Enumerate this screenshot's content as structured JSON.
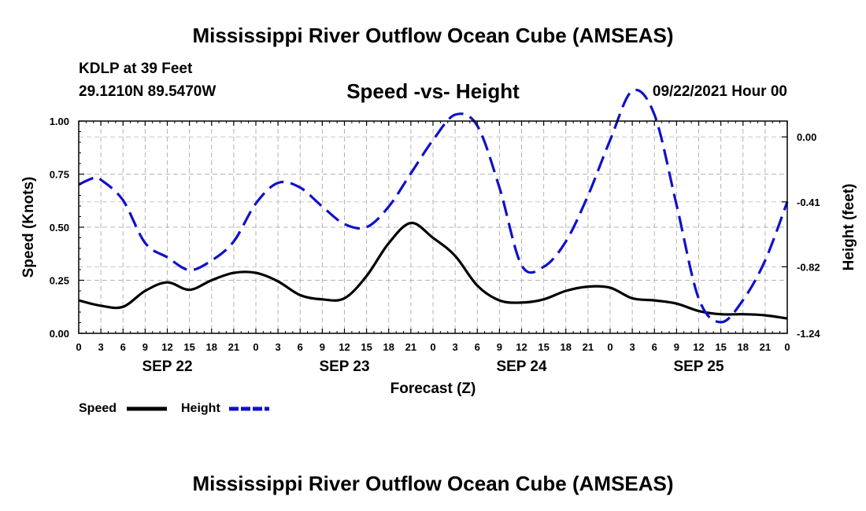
{
  "header": {
    "title": "Mississippi River Outflow Ocean Cube (AMSEAS)",
    "station": "KDLP at 39 Feet",
    "coords": "29.1210N  89.5470W",
    "subtitle": "Speed -vs- Height",
    "datetime": "09/22/2021 Hour 00"
  },
  "footer": {
    "title": "Mississippi River Outflow Ocean Cube (AMSEAS)"
  },
  "chart_data": {
    "type": "line",
    "title": "Speed -vs- Height",
    "xlabel": "Forecast (Z)",
    "ylabel": "Speed (Knots)",
    "y2label": "Height (feet)",
    "xlim": [
      0,
      96
    ],
    "ylim": [
      0,
      1.0
    ],
    "y2lim": [
      -1.24,
      0.1
    ],
    "grid": true,
    "x_tick_labels": [
      "0",
      "3",
      "6",
      "9",
      "12",
      "15",
      "18",
      "21",
      "0",
      "3",
      "6",
      "9",
      "12",
      "15",
      "18",
      "21",
      "0",
      "3",
      "6",
      "9",
      "12",
      "15",
      "18",
      "21",
      "0",
      "3",
      "6",
      "9",
      "12",
      "15",
      "18",
      "21",
      "0"
    ],
    "day_labels": [
      {
        "label": "SEP 22",
        "x": 12
      },
      {
        "label": "SEP 23",
        "x": 36
      },
      {
        "label": "SEP 24",
        "x": 60
      },
      {
        "label": "SEP 25",
        "x": 84
      }
    ],
    "y_ticks": [
      "0.00",
      "0.25",
      "0.50",
      "0.75",
      "1.00"
    ],
    "y_tick_values": [
      0,
      0.25,
      0.5,
      0.75,
      1.0
    ],
    "y2_ticks": [
      "0.00",
      "-0.41",
      "-0.82",
      "-1.24"
    ],
    "y2_tick_values": [
      0,
      -0.41,
      -0.82,
      -1.24
    ],
    "series": [
      {
        "name": "Speed",
        "axis": "left",
        "color": "#000000",
        "dash": "solid",
        "x": [
          0,
          3,
          6,
          9,
          12,
          15,
          18,
          21,
          24,
          27,
          30,
          33,
          36,
          39,
          42,
          45,
          48,
          51,
          54,
          57,
          60,
          63,
          66,
          69,
          72,
          75,
          78,
          81,
          84,
          87,
          90,
          93,
          96
        ],
        "values": [
          0.155,
          0.13,
          0.125,
          0.2,
          0.24,
          0.205,
          0.25,
          0.285,
          0.285,
          0.245,
          0.18,
          0.16,
          0.165,
          0.27,
          0.425,
          0.52,
          0.45,
          0.365,
          0.225,
          0.155,
          0.145,
          0.16,
          0.2,
          0.22,
          0.215,
          0.165,
          0.155,
          0.14,
          0.105,
          0.09,
          0.09,
          0.085,
          0.07
        ]
      },
      {
        "name": "Height",
        "axis": "right",
        "color": "#1010cc",
        "dash": "dashed",
        "x": [
          0,
          2,
          3,
          6,
          9,
          12,
          15,
          18,
          21,
          24,
          27,
          30,
          33,
          36,
          39,
          42,
          45,
          48,
          51,
          54,
          57,
          60,
          63,
          66,
          69,
          72,
          75,
          78,
          81,
          84,
          87,
          90,
          93,
          96
        ],
        "values": [
          -0.3,
          -0.26,
          -0.27,
          -0.4,
          -0.67,
          -0.76,
          -0.84,
          -0.78,
          -0.66,
          -0.42,
          -0.29,
          -0.32,
          -0.44,
          -0.55,
          -0.57,
          -0.44,
          -0.23,
          -0.02,
          0.14,
          0.07,
          -0.32,
          -0.81,
          -0.82,
          -0.66,
          -0.37,
          -0.02,
          0.29,
          0.14,
          -0.43,
          -1.02,
          -1.17,
          -1.03,
          -0.78,
          -0.41
        ]
      }
    ],
    "legend": [
      {
        "label": "Speed",
        "color": "#000000",
        "dash": "solid"
      },
      {
        "label": "Height",
        "color": "#1010cc",
        "dash": "dashed"
      }
    ]
  }
}
